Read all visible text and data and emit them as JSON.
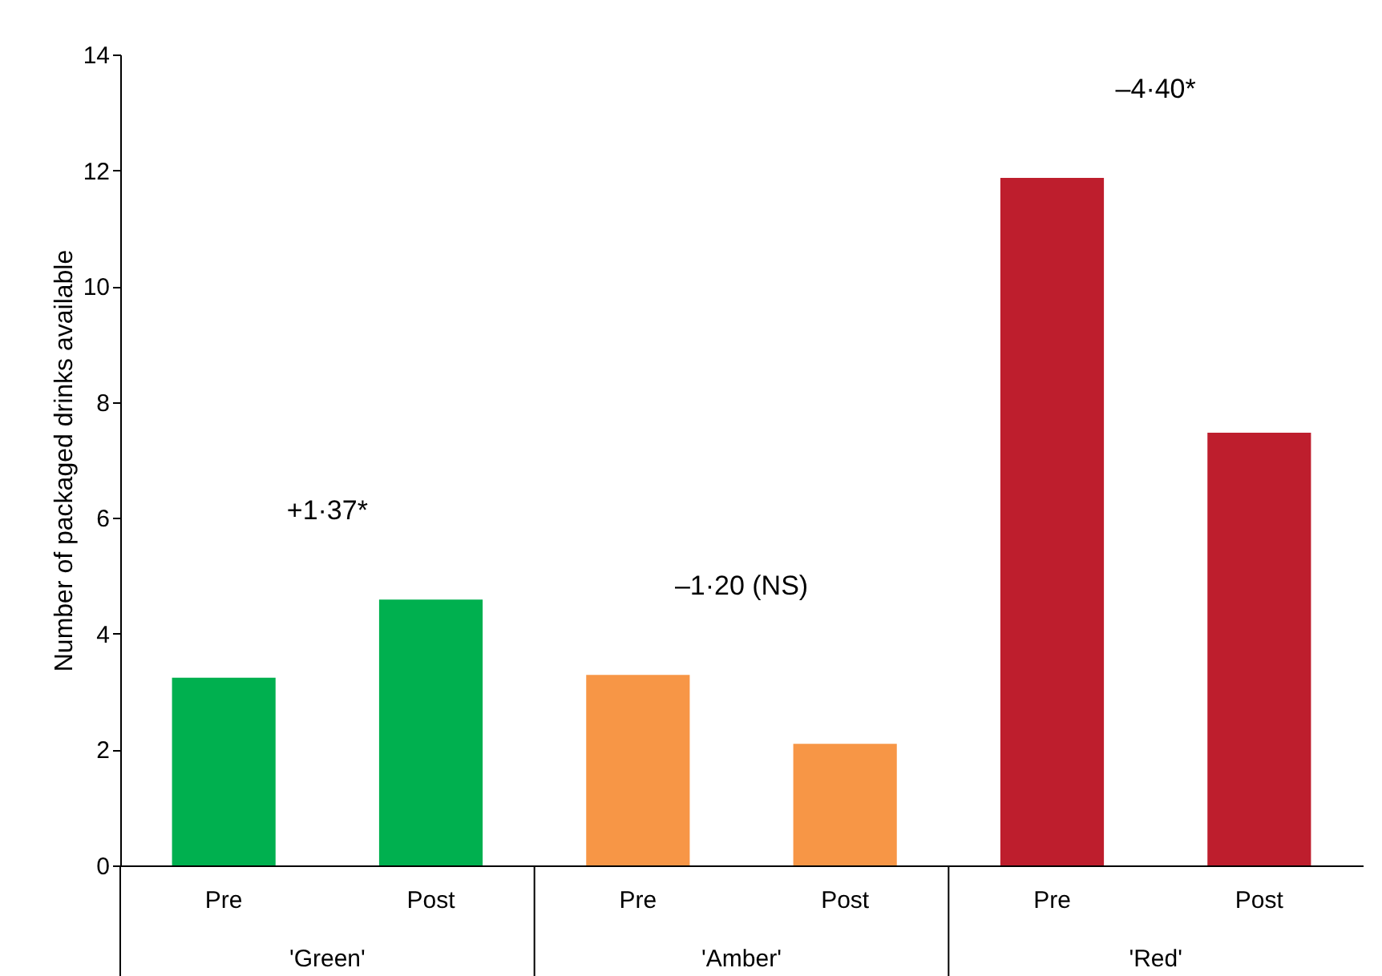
{
  "chart_data": {
    "type": "bar",
    "ylabel": "Number of packaged drinks available",
    "categories": [
      "Pre",
      "Post",
      "Pre",
      "Post",
      "Pre",
      "Post"
    ],
    "values": [
      3.24,
      4.59,
      3.29,
      2.1,
      11.87,
      7.47
    ],
    "colors": [
      "#00b04f",
      "#00b04f",
      "#f79646",
      "#f79646",
      "#be1e2d",
      "#be1e2d"
    ],
    "ylim": [
      0,
      14
    ],
    "yticks": [
      0,
      2,
      4,
      6,
      8,
      10,
      12,
      14
    ],
    "grid": false,
    "annotations": [
      "+1·37*",
      "–1·20 (NS)",
      "–4·40*",
      "'Green'",
      "'Amber'",
      "'Red'"
    ]
  }
}
